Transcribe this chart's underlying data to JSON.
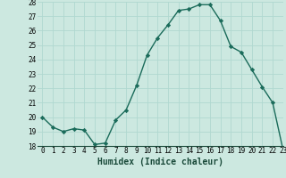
{
  "x": [
    0,
    1,
    2,
    3,
    4,
    5,
    6,
    7,
    8,
    9,
    10,
    11,
    12,
    13,
    14,
    15,
    16,
    17,
    18,
    19,
    20,
    21,
    22,
    23
  ],
  "y": [
    20,
    19.3,
    19,
    19.2,
    19.1,
    18.1,
    18.2,
    19.8,
    20.5,
    22.2,
    24.3,
    25.5,
    26.4,
    27.4,
    27.5,
    27.8,
    27.8,
    26.7,
    24.9,
    24.5,
    23.3,
    22.1,
    21.0,
    17.7
  ],
  "line_color": "#1a6b5a",
  "marker": "D",
  "marker_size": 2.2,
  "bg_color": "#cce8e0",
  "grid_color": "#b0d8d0",
  "xlabel": "Humidex (Indice chaleur)",
  "ylim": [
    18,
    28
  ],
  "xlim": [
    -0.5,
    23
  ],
  "yticks": [
    18,
    19,
    20,
    21,
    22,
    23,
    24,
    25,
    26,
    27,
    28
  ],
  "xticks": [
    0,
    1,
    2,
    3,
    4,
    5,
    6,
    7,
    8,
    9,
    10,
    11,
    12,
    13,
    14,
    15,
    16,
    17,
    18,
    19,
    20,
    21,
    22,
    23
  ],
  "xtick_labels": [
    "0",
    "1",
    "2",
    "3",
    "4",
    "5",
    "6",
    "7",
    "8",
    "9",
    "10",
    "11",
    "12",
    "13",
    "14",
    "15",
    "16",
    "17",
    "18",
    "19",
    "20",
    "21",
    "22",
    "23"
  ],
  "tick_fontsize": 5.5,
  "xlabel_fontsize": 7,
  "line_width": 1.0
}
